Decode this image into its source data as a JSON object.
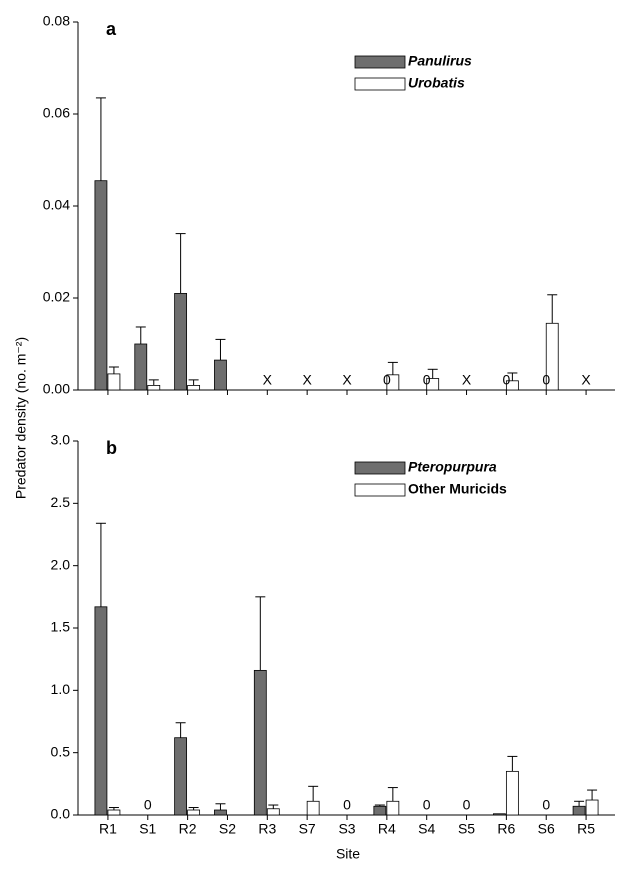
{
  "y_label": "Predator density (no. m⁻²)",
  "x_label": "Site",
  "categories": [
    "R1",
    "S1",
    "R2",
    "S2",
    "R3",
    "S7",
    "S3",
    "R4",
    "S4",
    "S5",
    "R6",
    "S6",
    "R5"
  ],
  "chart_data": [
    {
      "type": "bar",
      "panel_label": "a",
      "ylim": [
        0,
        0.08
      ],
      "yticks": [
        {
          "value": 0,
          "label": "0.00"
        },
        {
          "value": 0.02,
          "label": "0.02"
        },
        {
          "value": 0.04,
          "label": "0.04"
        },
        {
          "value": 0.06,
          "label": "0.06"
        },
        {
          "value": 0.08,
          "label": "0.08"
        }
      ],
      "series": [
        {
          "name": "Panulirus",
          "color": "#6e6e6e",
          "values": [
            0.0455,
            0.01,
            0.021,
            0.0065,
            null,
            null,
            null,
            0,
            0,
            null,
            0,
            0,
            null
          ],
          "errors": [
            0.018,
            0.0037,
            0.013,
            0.0045,
            null,
            null,
            null,
            null,
            null,
            null,
            null,
            null,
            null
          ]
        },
        {
          "name": "Urobatis",
          "color": "#ffffff",
          "values": [
            0.0035,
            0.001,
            0.001,
            null,
            null,
            null,
            null,
            0.0033,
            0.0025,
            null,
            0.002,
            0.0145,
            null
          ],
          "errors": [
            0.0015,
            0.0012,
            0.0012,
            null,
            null,
            null,
            null,
            0.0027,
            0.002,
            null,
            0.0017,
            0.0062,
            null
          ]
        }
      ],
      "annotations": [
        {
          "index": 4,
          "text": "X"
        },
        {
          "index": 5,
          "text": "X"
        },
        {
          "index": 6,
          "text": "X"
        },
        {
          "index": 7,
          "text": "0"
        },
        {
          "index": 8,
          "text": "0"
        },
        {
          "index": 9,
          "text": "X"
        },
        {
          "index": 10,
          "text": "0"
        },
        {
          "index": 11,
          "text": "0"
        },
        {
          "index": 12,
          "text": "X"
        }
      ]
    },
    {
      "type": "bar",
      "panel_label": "b",
      "ylim": [
        0,
        3
      ],
      "yticks": [
        {
          "value": 0,
          "label": "0.0"
        },
        0.5,
        {
          "value": 1,
          "label": "1.0"
        },
        1.5,
        {
          "value": 2,
          "label": "2.0"
        },
        2.5,
        {
          "value": 3,
          "label": "3.0"
        }
      ],
      "series": [
        {
          "name": "Pteropurpura",
          "color": "#6e6e6e",
          "values": [
            1.67,
            0,
            0.62,
            0.04,
            1.16,
            null,
            0,
            0.07,
            0,
            0,
            0.01,
            0,
            0.07
          ],
          "errors": [
            0.67,
            null,
            0.12,
            0.05,
            0.59,
            null,
            null,
            0.01,
            null,
            null,
            null,
            null,
            0.04
          ]
        },
        {
          "name": "Other Muricids",
          "color": "#ffffff",
          "values": [
            0.04,
            0,
            0.04,
            null,
            0.05,
            0.11,
            0,
            0.11,
            0,
            0,
            0.35,
            0,
            0.12
          ],
          "errors": [
            0.02,
            null,
            0.02,
            null,
            0.03,
            0.12,
            null,
            0.11,
            null,
            null,
            0.12,
            null,
            0.08
          ]
        }
      ],
      "annotations": [
        {
          "index": 1,
          "text": "0"
        },
        {
          "index": 6,
          "text": "0"
        },
        {
          "index": 8,
          "text": "0"
        },
        {
          "index": 9,
          "text": "0"
        },
        {
          "index": 11,
          "text": "0"
        }
      ]
    }
  ]
}
